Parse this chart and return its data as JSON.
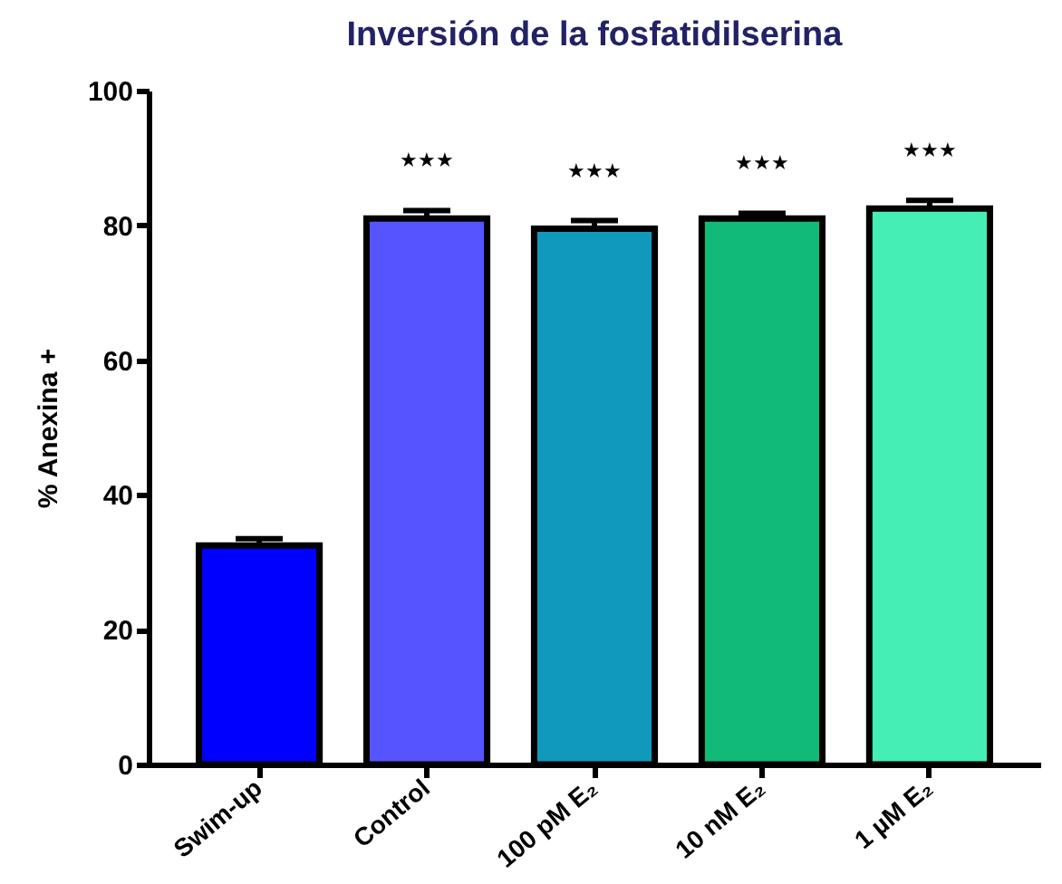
{
  "chart_data": {
    "type": "bar",
    "title": "Inversión de la fosfatidilserina",
    "ylabel": "% Anexina +",
    "categories": [
      "Swim-up",
      "Control",
      "100 pM E₂",
      "10 nM E₂",
      "1 µM E₂"
    ],
    "values": [
      32.5,
      81,
      79.5,
      81,
      82.5
    ],
    "colors": [
      "#0000ff",
      "#5555ff",
      "#1199bb",
      "#11bb77",
      "#44eeb4"
    ],
    "errors": [
      [
        32.5,
        33.5
      ],
      [
        81,
        82.2
      ],
      [
        79.5,
        80.7
      ],
      [
        81,
        81.8
      ],
      [
        82.5,
        83.7
      ]
    ],
    "ylim": [
      0,
      100
    ],
    "yticks": [
      0,
      20,
      40,
      60,
      80,
      100
    ],
    "annotations": [
      "★★★",
      "★★★",
      "★★★",
      "★★★"
    ]
  }
}
